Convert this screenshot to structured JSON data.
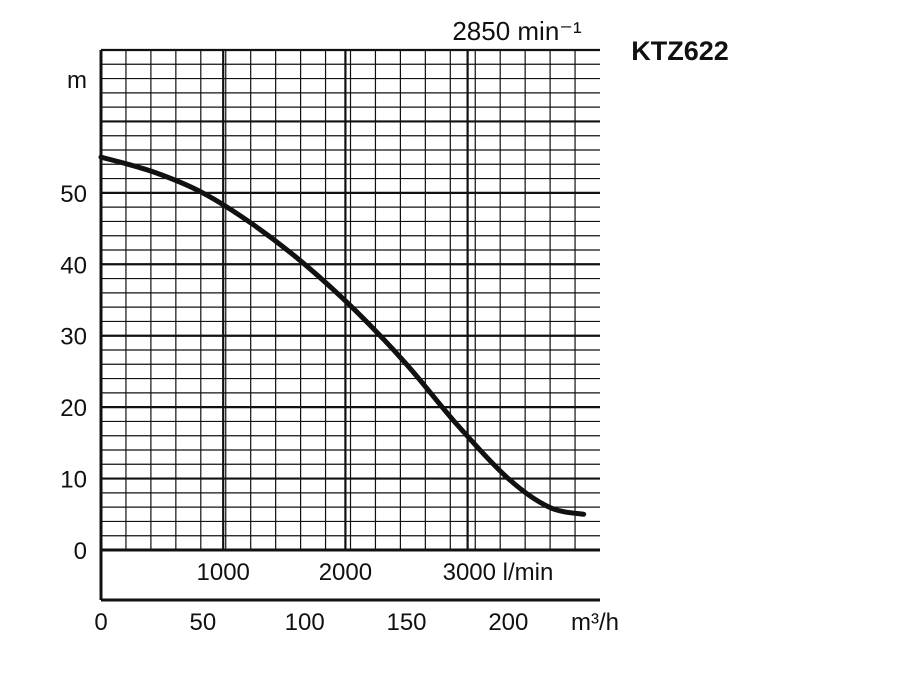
{
  "chart_data": {
    "type": "line",
    "title": "KTZ622",
    "speed_label": "2850 min⁻¹",
    "ylabel": "m",
    "ylim": [
      0,
      70
    ],
    "yticks": [
      0,
      10,
      20,
      30,
      40,
      50
    ],
    "xlim": [
      0,
      245
    ],
    "x_unit_label": "m³/h",
    "xticks": [
      0,
      50,
      100,
      150,
      200
    ],
    "x2_ticks": [
      {
        "value": 1000,
        "label": "1000"
      },
      {
        "value": 2000,
        "label": "2000"
      },
      {
        "value": 3000,
        "label": "3000 l/min"
      }
    ],
    "grid": true,
    "series": [
      {
        "x": [
          0,
          25,
          50,
          75,
          100,
          125,
          150,
          175,
          200,
          220,
          237
        ],
        "y": [
          55,
          53,
          50,
          45.5,
          40,
          33.5,
          26,
          17.5,
          10,
          6,
          5
        ]
      }
    ]
  }
}
